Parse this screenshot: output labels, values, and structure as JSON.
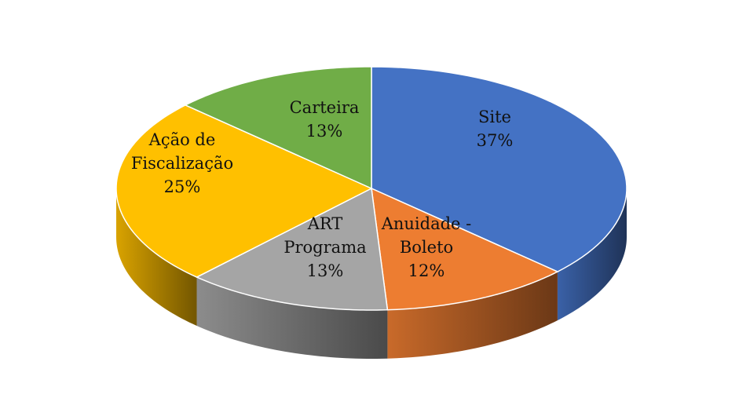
{
  "chart_data": {
    "type": "pie",
    "categories": [
      "Site",
      "Anuidade - Boleto",
      "ART Programa",
      "Ação de Fiscalização",
      "Carteira"
    ],
    "values": [
      37,
      12,
      13,
      25,
      13
    ],
    "value_labels": [
      "37%",
      "12%",
      "13%",
      "25%",
      "13%"
    ],
    "colors": [
      "#4472c4",
      "#ed7d31",
      "#a5a5a5",
      "#ffc000",
      "#70ad47"
    ],
    "three_d": true
  }
}
